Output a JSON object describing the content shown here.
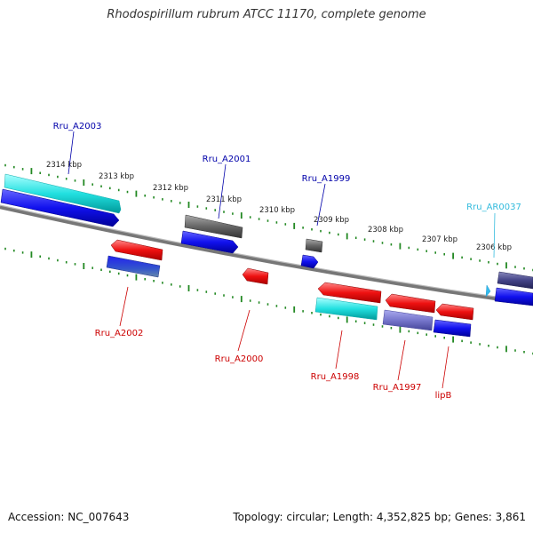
{
  "title": "Rhodospirillum rubrum ATCC 11170, complete genome",
  "footer": {
    "accession": "Accession: NC_007643",
    "summary": "Topology: circular; Length: 4,352,825 bp; Genes: 3,861"
  },
  "colors": {
    "forward_label": "#0000aa",
    "reverse_label": "#cc0000",
    "rna_label": "#33bbdd",
    "tick": "#228822",
    "backbone": "#888888"
  },
  "scale_labels": [
    "2314 kbp",
    "2313 kbp",
    "2312 kbp",
    "2311 kbp",
    "2310 kbp",
    "2309 kbp",
    "2308 kbp",
    "2307 kbp",
    "2306 kbp"
  ],
  "gene_labels": {
    "rru_a2003": "Rru_A2003",
    "rru_a2001": "Rru_A2001",
    "rru_a1999": "Rru_A1999",
    "rru_ar0037": "Rru_AR0037",
    "rru_a2002": "Rru_A2002",
    "rru_a2000": "Rru_A2000",
    "rru_a1998": "Rru_A1998",
    "rru_a1997": "Rru_A1997",
    "lipb": "lipB"
  }
}
